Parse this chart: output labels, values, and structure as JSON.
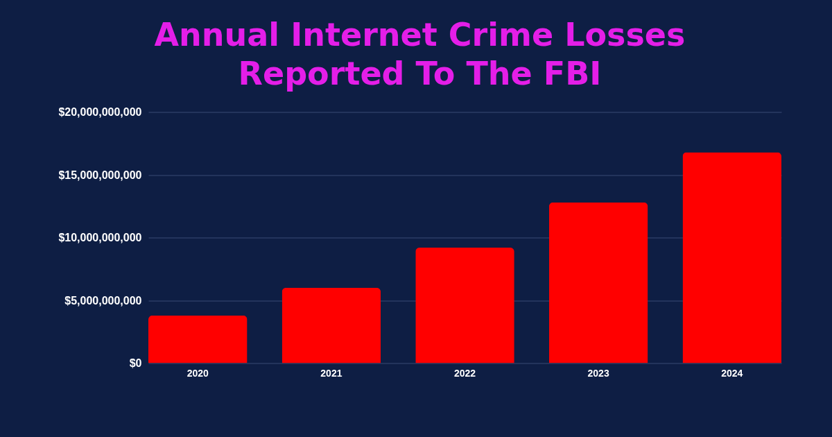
{
  "chart_data": {
    "type": "bar",
    "title": "Annual Internet Crime Losses Reported To The FBI",
    "categories": [
      "2020",
      "2021",
      "2022",
      "2023",
      "2024"
    ],
    "values": [
      3800000000,
      6000000000,
      9200000000,
      12800000000,
      16800000000
    ],
    "color": "#ff0000",
    "ylim": [
      0,
      20000000000
    ],
    "yticks": [
      {
        "value": 0,
        "label": "$0"
      },
      {
        "value": 5000000000,
        "label": "$5,000,000,000"
      },
      {
        "value": 10000000000,
        "label": "$10,000,000,000"
      },
      {
        "value": 15000000000,
        "label": "$15,000,000,000"
      },
      {
        "value": 20000000000,
        "label": "$20,000,000,000"
      }
    ],
    "grid": "y"
  }
}
